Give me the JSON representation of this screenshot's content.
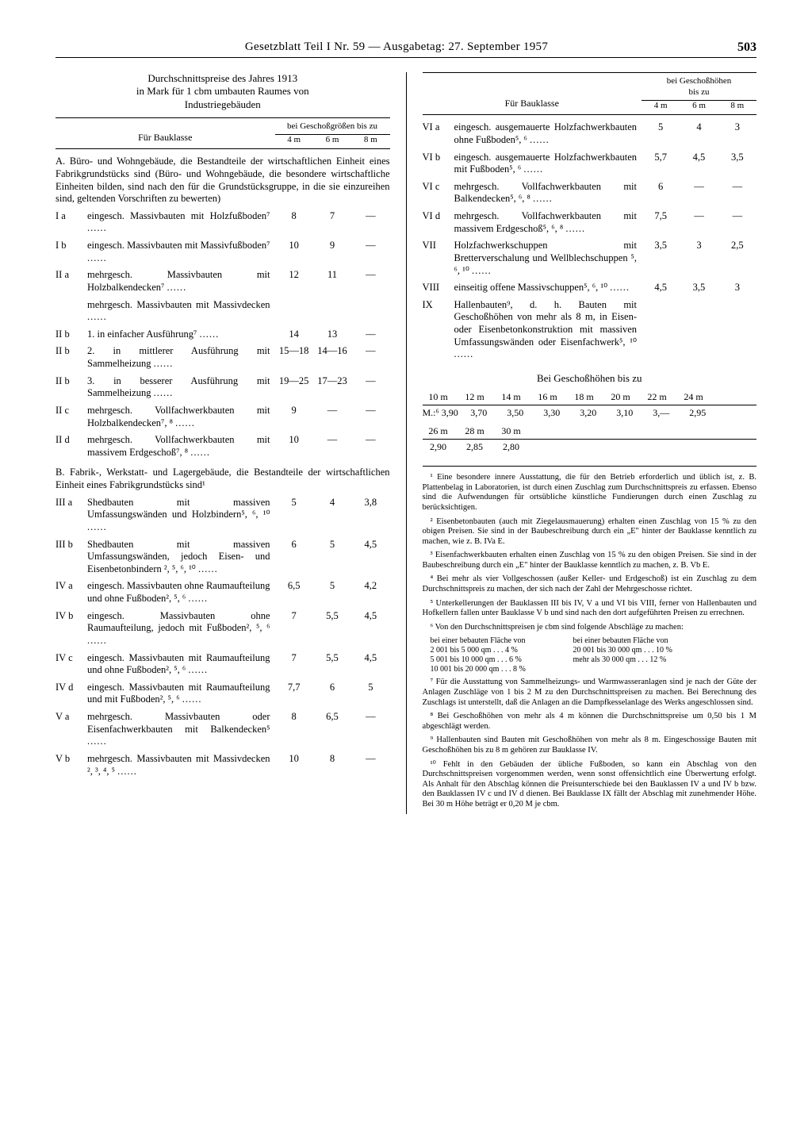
{
  "header": {
    "title": "Gesetzblatt Teil I Nr. 59 — Ausgabetag: 27. September 1957",
    "page": "503"
  },
  "caption": "Durchschnittspreise des Jahres 1913\nin Mark für 1 cbm umbauten Raumes von\nIndustriegebäuden",
  "tableHeader": {
    "label": "Für Bauklasse",
    "superHead": "bei Geschoßgrößen bis zu",
    "cols": [
      "4 m",
      "6 m",
      "8 m"
    ]
  },
  "sectionA": {
    "title": "A. Büro- und Wohngebäude, die Bestandteile der wirtschaftlichen Einheit eines Fabrikgrundstücks sind (Büro- und Wohngebäude, die besondere wirtschaftliche Einheiten bilden, sind nach den für die Grundstücksgruppe, in die sie einzureihen sind, geltenden Vorschriften zu bewerten)",
    "rows": [
      {
        "key": "I a",
        "desc": "eingesch. Massivbauten mit Holzfußboden⁷",
        "v": [
          "8",
          "7",
          "—"
        ]
      },
      {
        "key": "I b",
        "desc": "eingesch. Massivbauten mit Massivfußboden⁷",
        "v": [
          "10",
          "9",
          "—"
        ]
      },
      {
        "key": "II a",
        "desc": "mehrgesch. Massivbauten mit Holzbalkendecken⁷",
        "v": [
          "12",
          "11",
          "—"
        ]
      },
      {
        "key": "",
        "desc": "mehrgesch. Massivbauten mit Massivdecken",
        "v": [
          "",
          "",
          ""
        ]
      },
      {
        "key": "II b",
        "desc": "1. in einfacher Ausführung⁷",
        "v": [
          "14",
          "13",
          "—"
        ]
      },
      {
        "key": "II b",
        "desc": "2. in mittlerer Ausführung mit Sammelheizung",
        "v": [
          "15—18",
          "14—16",
          "—"
        ]
      },
      {
        "key": "II b",
        "desc": "3. in besserer Ausführung mit Sammelheizung",
        "v": [
          "19—25",
          "17—23",
          "—"
        ]
      },
      {
        "key": "II c",
        "desc": "mehrgesch. Vollfachwerkbauten mit Holzbalkendecken⁷, ⁸",
        "v": [
          "9",
          "—",
          "—"
        ]
      },
      {
        "key": "II d",
        "desc": "mehrgesch. Vollfachwerkbauten mit massivem Erdgeschoß⁷, ⁸",
        "v": [
          "10",
          "—",
          "—"
        ]
      }
    ]
  },
  "sectionB": {
    "title": "B. Fabrik-, Werkstatt- und Lagergebäude, die Bestandteile der wirtschaftlichen Einheit eines Fabrikgrundstücks sind¹",
    "rows": [
      {
        "key": "III a",
        "desc": "Shedbauten mit massiven Umfassungswänden und Holzbindern⁵, ⁶, ¹⁰",
        "v": [
          "5",
          "4",
          "3,8"
        ]
      },
      {
        "key": "III b",
        "desc": "Shedbauten mit massiven Umfassungswänden, jedoch Eisen- und Eisenbetonbindern ², ⁵, ⁶, ¹⁰",
        "v": [
          "6",
          "5",
          "4,5"
        ]
      },
      {
        "key": "IV a",
        "desc": "eingesch. Massivbauten ohne Raumaufteilung und ohne Fußboden², ⁵, ⁶",
        "v": [
          "6,5",
          "5",
          "4,2"
        ]
      },
      {
        "key": "IV b",
        "desc": "eingesch. Massivbauten ohne Raumaufteilung, jedoch mit Fußboden², ⁵, ⁶",
        "v": [
          "7",
          "5,5",
          "4,5"
        ]
      },
      {
        "key": "IV c",
        "desc": "eingesch. Massivbauten mit Raumaufteilung und ohne Fußboden², ⁵, ⁶",
        "v": [
          "7",
          "5,5",
          "4,5"
        ]
      },
      {
        "key": "IV d",
        "desc": "eingesch. Massivbauten mit Raumaufteilung und mit Fußboden², ⁵, ⁶",
        "v": [
          "7,7",
          "6",
          "5"
        ]
      },
      {
        "key": "V a",
        "desc": "mehrgesch. Massivbauten oder Eisenfachwerkbauten mit Balkendecken⁵",
        "v": [
          "8",
          "6,5",
          "—"
        ]
      },
      {
        "key": "V b",
        "desc": "mehrgesch. Massivbauten mit Massivdecken ², ³, ⁴, ⁵",
        "v": [
          "10",
          "8",
          "—"
        ]
      }
    ]
  },
  "rightRows": [
    {
      "key": "VI a",
      "desc": "eingesch. ausgemauerte Holzfachwerkbauten ohne Fußboden⁵, ⁶",
      "v": [
        "5",
        "4",
        "3"
      ]
    },
    {
      "key": "VI b",
      "desc": "eingesch. ausgemauerte Holzfachwerkbauten mit Fußboden⁵, ⁶",
      "v": [
        "5,7",
        "4,5",
        "3,5"
      ]
    },
    {
      "key": "VI c",
      "desc": "mehrgesch. Vollfachwerkbauten mit Balkendecken⁵, ⁶, ⁸",
      "v": [
        "6",
        "—",
        "—"
      ]
    },
    {
      "key": "VI d",
      "desc": "mehrgesch. Vollfachwerkbauten mit massivem Erdgeschoß⁵, ⁶, ⁸",
      "v": [
        "7,5",
        "—",
        "—"
      ]
    },
    {
      "key": "VII",
      "desc": "Holzfachwerkschuppen mit Bretterverschalung und Wellblechschuppen ⁵, ⁶, ¹⁰",
      "v": [
        "3,5",
        "3",
        "2,5"
      ]
    },
    {
      "key": "VIII",
      "desc": "einseitig offene Massivschuppen⁵, ⁶, ¹⁰",
      "v": [
        "4,5",
        "3,5",
        "3"
      ]
    },
    {
      "key": "IX",
      "desc": "Hallenbauten⁹, d. h. Bauten mit Geschoßhöhen von mehr als 8 m, in Eisen- oder Eisenbetonkonstruktion mit massiven Umfassungswänden oder Eisenfachwerk⁵, ¹⁰",
      "v": [
        "",
        "",
        ""
      ]
    }
  ],
  "heightTable": {
    "title": "Bei Geschoßhöhen bis zu",
    "head1": [
      "10 m",
      "12 m",
      "14 m",
      "16 m",
      "18 m",
      "20 m",
      "22 m",
      "24 m"
    ],
    "vals1": [
      "M.:⁶ 3,90",
      "3,70",
      "3,50",
      "3,30",
      "3,20",
      "3,10",
      "3,—",
      "2,95"
    ],
    "head2": [
      "26 m",
      "28 m",
      "30 m"
    ],
    "vals2": [
      "2,90",
      "2,85",
      "2,80"
    ]
  },
  "footnotes": [
    "¹ Eine besondere innere Ausstattung, die für den Betrieb erforderlich und üblich ist, z. B. Plattenbelag in Laboratorien, ist durch einen Zuschlag zum Durchschnittspreis zu erfassen. Ebenso sind die Aufwendungen für ortsübliche künstliche Fundierungen durch einen Zuschlag zu berücksichtigen.",
    "² Eisenbetonbauten (auch mit Ziegelausmauerung) erhalten einen Zuschlag von 15 % zu den obigen Preisen. Sie sind in der Baubeschreibung durch ein „E\" hinter der Bauklasse kenntlich zu machen, wie z. B. IVa E.",
    "³ Eisenfachwerkbauten erhalten einen Zuschlag von 15 % zu den obigen Preisen. Sie sind in der Baubeschreibung durch ein „E\" hinter der Bauklasse kenntlich zu machen, z. B. Vb E.",
    "⁴ Bei mehr als vier Vollgeschossen (außer Keller- und Erdgeschoß) ist ein Zuschlag zu dem Durchschnittspreis zu machen, der sich nach der Zahl der Mehrgeschosse richtet.",
    "⁵ Unterkellerungen der Bauklassen III bis IV, V a und VI bis VIII, ferner von Hallenbauten und Hofkellern fallen unter Bauklasse V b und sind nach den dort aufgeführten Preisen zu errechnen.",
    "⁶ Von den Durchschnittspreisen je cbm sind folgende Abschläge zu machen:"
  ],
  "fnTable": [
    [
      "bei einer bebauten Fläche von",
      "bei einer bebauten Fläche von"
    ],
    [
      "  2 001 bis  5 000 qm  . . .  4 %",
      "20 001 bis 30 000 qm  . . .  10 %"
    ],
    [
      "  5 001 bis 10 000 qm  . . .  6 %",
      "mehr als 30 000 qm  . . .  12 %"
    ],
    [
      "10 001 bis 20 000 qm  . . .  8 %",
      ""
    ]
  ],
  "footnotes2": [
    "⁷ Für die Ausstattung von Sammelheizungs- und Warmwasseranlagen sind je nach der Güte der Anlagen Zuschläge von 1 bis 2 M zu den Durchschnittspreisen zu machen. Bei Berechnung des Zuschlags ist unterstellt, daß die Anlagen an die Dampfkesselanlage des Werks angeschlossen sind.",
    "⁸ Bei Geschoßhöhen von mehr als 4 m können die Durchschnittspreise um 0,50 bis 1 M abgeschlägt werden.",
    "⁹ Hallenbauten sind Bauten mit Geschoßhöhen von mehr als 8 m. Eingeschossige Bauten mit Geschoßhöhen bis zu 8 m gehören zur Bauklasse IV.",
    "¹⁰ Fehlt in den Gebäuden der übliche Fußboden, so kann ein Abschlag von den Durchschnittspreisen vorgenommen werden, wenn sonst offensichtlich eine Überwertung erfolgt. Als Anhalt für den Abschlag können die Preisunterschiede bei den Bauklassen IV a und IV b bzw. den Bauklassen IV c und IV d dienen. Bei Bauklasse IX fällt der Abschlag mit zunehmender Höhe. Bei 30 m Höhe beträgt er 0,20 M je cbm."
  ]
}
